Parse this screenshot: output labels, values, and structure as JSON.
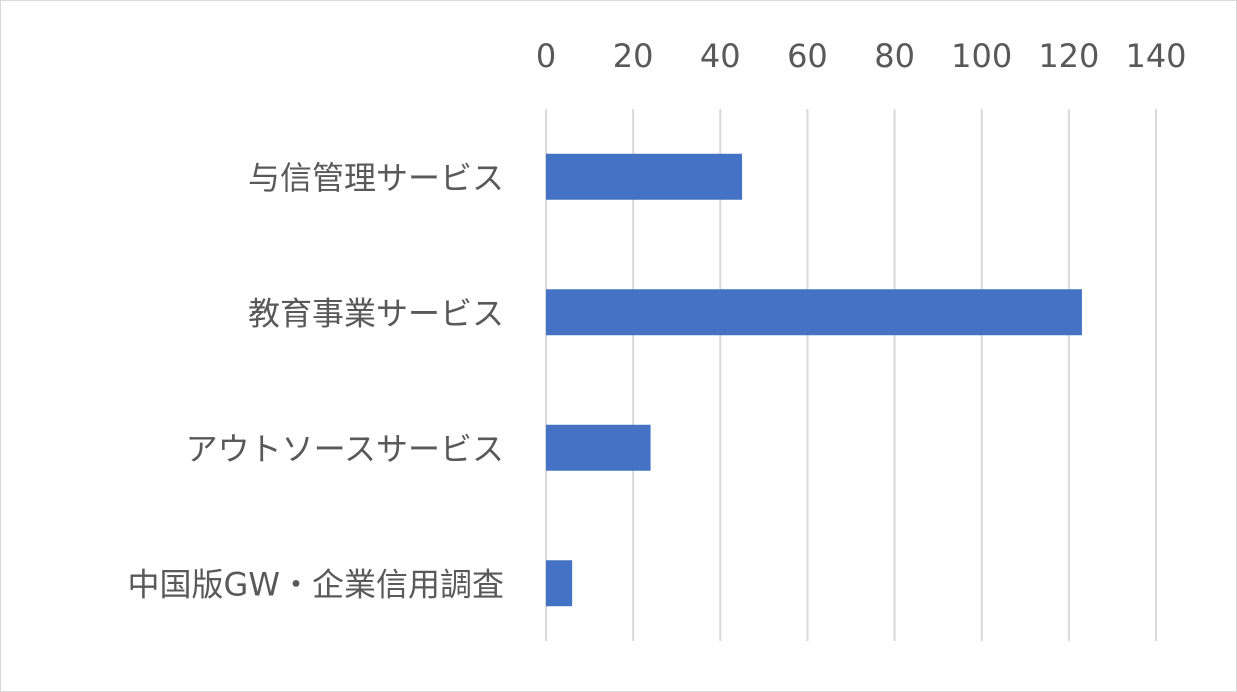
{
  "chart_data": {
    "type": "bar",
    "orientation": "horizontal",
    "categories": [
      "与信管理サービス",
      "教育事業サービス",
      "アウトソースサービス",
      "中国版GW・企業信用調査"
    ],
    "values": [
      45,
      123,
      24,
      6
    ],
    "xlim": [
      0,
      140
    ],
    "x_ticks": [
      0,
      20,
      40,
      60,
      80,
      100,
      120,
      140
    ],
    "x_tick_labels": [
      "0",
      "20",
      "40",
      "60",
      "80",
      "100",
      "120",
      "140"
    ],
    "axis_position": "top",
    "grid": true,
    "legend": "none",
    "title": "",
    "xlabel": "",
    "ylabel": "",
    "bar_color": "#4472c4",
    "grid_color": "#d9d9d9",
    "text_color": "#595959"
  }
}
